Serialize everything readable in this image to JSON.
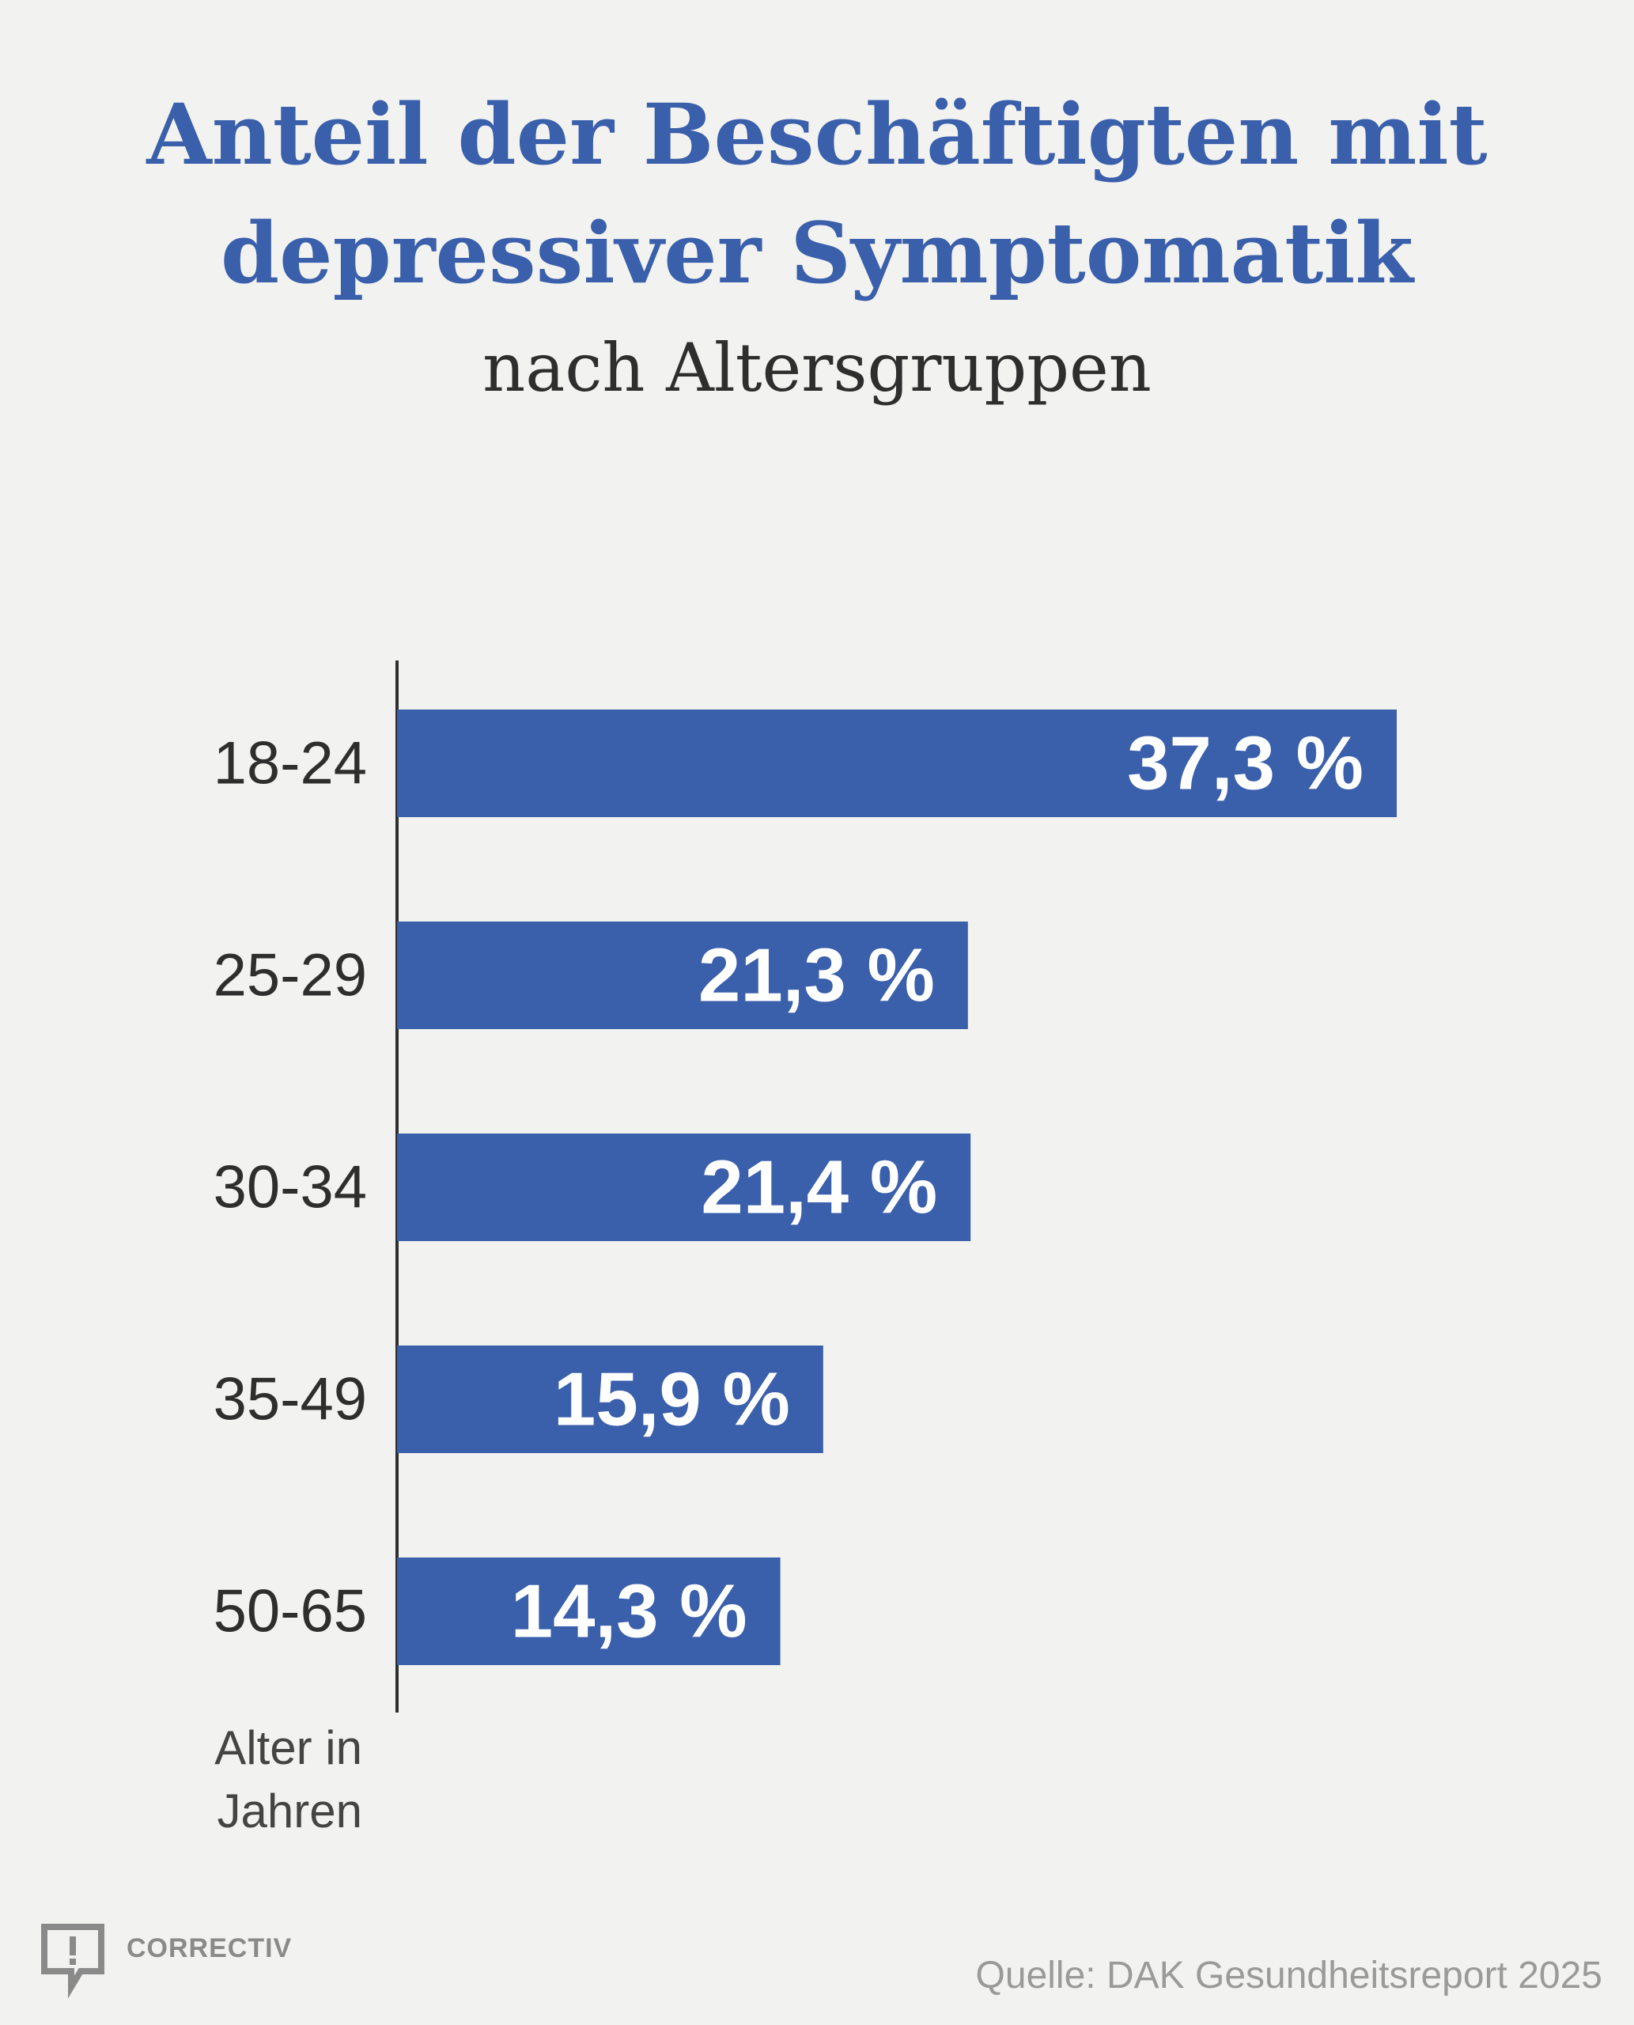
{
  "header": {
    "title_line1": "Anteil der Beschäftigten mit",
    "title_line2": "depressiver Symptomatik",
    "subtitle": "nach Altersgruppen"
  },
  "chart_data": {
    "type": "bar",
    "orientation": "horizontal",
    "categories": [
      "18-24",
      "25-29",
      "30-34",
      "35-49",
      "50-65"
    ],
    "values": [
      37.3,
      21.3,
      21.4,
      15.9,
      14.3
    ],
    "value_labels": [
      "37,3 %",
      "21,3 %",
      "21,4 %",
      "15,9 %",
      "14,3 %"
    ],
    "axis_label_line1": "Alter in",
    "axis_label_line2": "Jahren",
    "grid": false,
    "bar_color": "#3a5fab"
  },
  "footer": {
    "brand": "CORRECTIV",
    "source": "Quelle: DAK Gesundheitsreport 2025"
  },
  "colors": {
    "accent": "#3a5fab",
    "background": "#f2f2f0",
    "text": "#2e2e2e",
    "muted": "#9a9a9a"
  }
}
